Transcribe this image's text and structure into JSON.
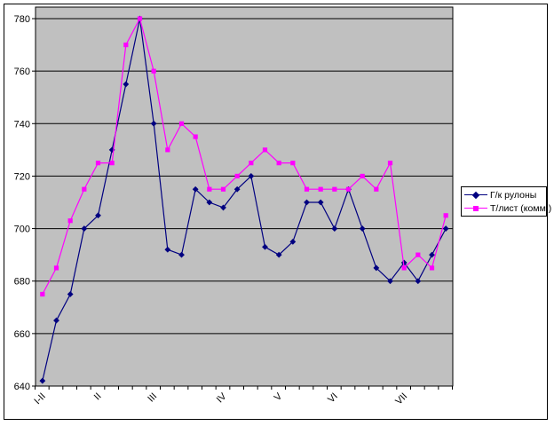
{
  "chart_data": {
    "type": "line",
    "title": "",
    "plot_bg_color": "#C0C0C0",
    "grid": "horizontal",
    "gridline_color": "#000000",
    "n_points": 30,
    "y_axis": {
      "min": 640,
      "max": 780,
      "step": 20,
      "ticks": [
        640,
        660,
        680,
        700,
        720,
        740,
        760,
        780
      ]
    },
    "x_axis": {
      "labels": [
        {
          "text": "I-II",
          "index": 0
        },
        {
          "text": "II",
          "index": 4
        },
        {
          "text": "III",
          "index": 8
        },
        {
          "text": "IV",
          "index": 13
        },
        {
          "text": "V",
          "index": 17
        },
        {
          "text": "VI",
          "index": 21
        },
        {
          "text": "VII",
          "index": 26
        }
      ]
    },
    "series": [
      {
        "name": "Г/к рулоны",
        "color": "#000080",
        "marker": "diamond",
        "values": [
          642,
          665,
          675,
          700,
          705,
          730,
          755,
          780,
          740,
          692,
          690,
          715,
          710,
          708,
          715,
          720,
          693,
          690,
          695,
          710,
          710,
          700,
          715,
          700,
          685,
          680,
          687,
          680,
          690,
          700
        ]
      },
      {
        "name": "Т/лист (комм.)",
        "color": "#FF00FF",
        "marker": "square",
        "values": [
          675,
          685,
          703,
          715,
          725,
          725,
          770,
          780,
          760,
          730,
          740,
          735,
          715,
          715,
          720,
          725,
          730,
          725,
          725,
          715,
          715,
          715,
          715,
          720,
          715,
          725,
          685,
          690,
          685,
          705
        ]
      }
    ],
    "legend": {
      "position": "right"
    }
  }
}
